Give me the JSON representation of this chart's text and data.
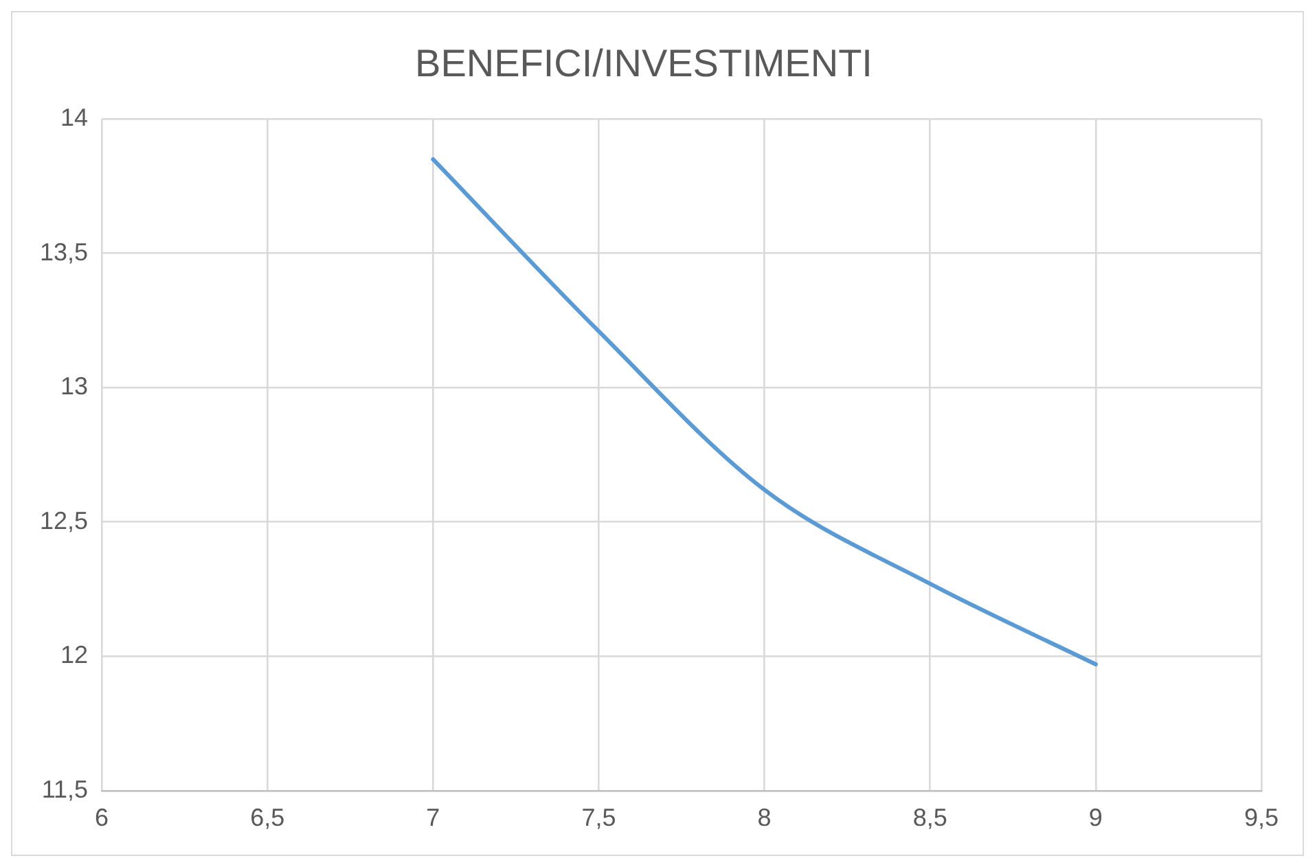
{
  "chart_data": {
    "type": "line",
    "title": "BENEFICI/INVESTIMENTI",
    "x": [
      7,
      7.5,
      8,
      8.5,
      9
    ],
    "series": [
      {
        "color": "#5b9bd5",
        "values": [
          13.85,
          13.21,
          12.62,
          12.27,
          11.97
        ]
      }
    ],
    "xlim": [
      6,
      9.5
    ],
    "xticks": [
      6,
      {
        "value": 6.5,
        "label": "6,5"
      },
      7,
      {
        "value": 7.5,
        "label": "7,5"
      },
      8,
      {
        "value": 8.5,
        "label": "8,5"
      },
      9,
      {
        "value": 9.5,
        "label": "9,5"
      }
    ],
    "ylim": [
      11.5,
      14
    ],
    "yticks": [
      {
        "value": 11.5,
        "label": "11,5"
      },
      12,
      {
        "value": 12.5,
        "label": "12,5"
      },
      13,
      {
        "value": 13.5,
        "label": "13,5"
      },
      14
    ],
    "grid": true,
    "legend": false,
    "marker": "none",
    "line_style": "solid"
  }
}
